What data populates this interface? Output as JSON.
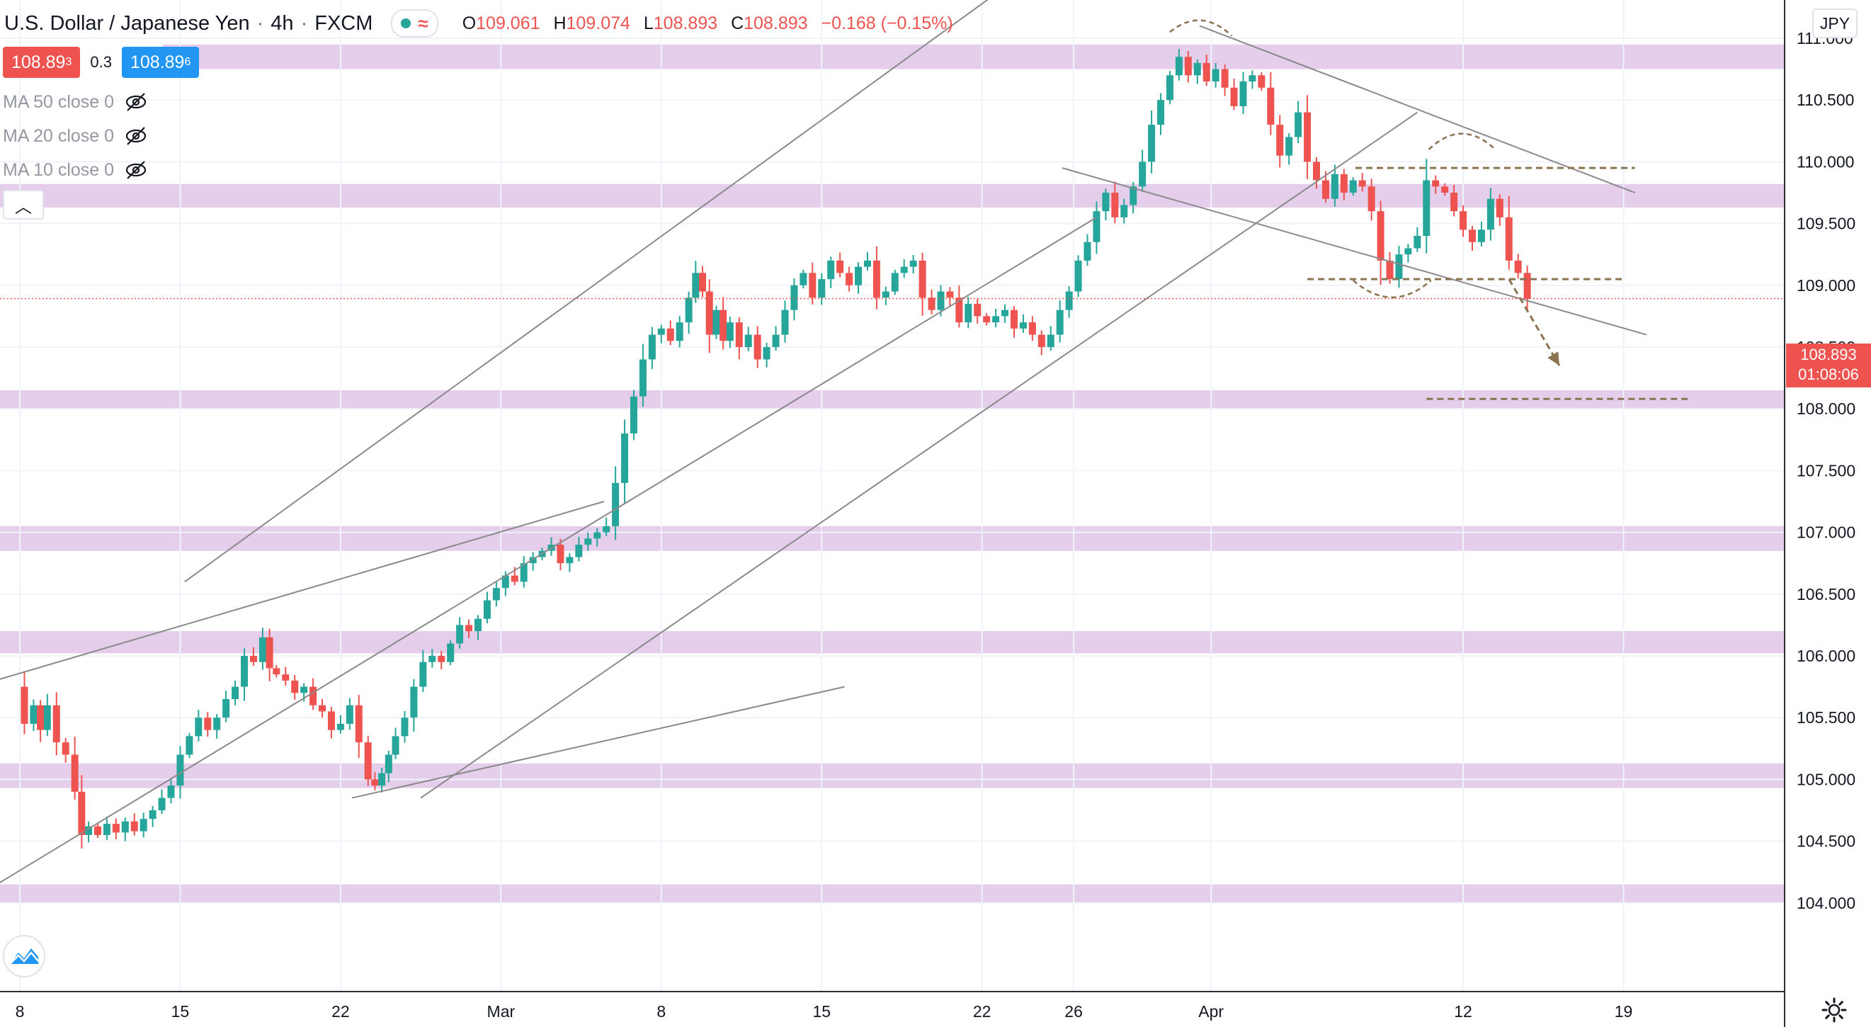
{
  "header": {
    "symbol": "U.S. Dollar / Japanese Yen",
    "interval": "4h",
    "exchange": "FXCM",
    "ohlc": {
      "o_label": "O",
      "o": "109.061",
      "h_label": "H",
      "h": "109.074",
      "l_label": "L",
      "l": "108.893",
      "c_label": "C",
      "c": "108.893",
      "change": "−0.168 (−0.15%)"
    }
  },
  "quote": {
    "sell_main": "108.89",
    "sell_sup": "3",
    "spread": "0.3",
    "buy_main": "108.89",
    "buy_sup": "6"
  },
  "indicators": [
    {
      "label": "MA 50 close 0",
      "icon": "eye-off-icon"
    },
    {
      "label": "MA 20 close 0",
      "icon": "eye-off-icon"
    },
    {
      "label": "MA 10 close 0",
      "icon": "eye-off-icon"
    }
  ],
  "price_scale": {
    "unit": "JPY",
    "current_price": "108.893",
    "countdown": "01:08:06"
  },
  "colors": {
    "up": "#26a69a",
    "down": "#ef5350",
    "zone": "#e1c4e9",
    "trendline": "#8a8a8a",
    "annotation": "#8a7452"
  },
  "chart_data": {
    "type": "candlestick",
    "title": "U.S. Dollar / Japanese Yen · 4h · FXCM",
    "ylim": [
      103.85,
      111.4
    ],
    "y_ticks": [
      "104.000",
      "104.500",
      "105.000",
      "105.500",
      "106.000",
      "106.500",
      "107.000",
      "107.500",
      "108.000",
      "108.500",
      "109.000",
      "109.500",
      "110.000",
      "110.500",
      "111.000"
    ],
    "x_ticks": [
      {
        "label": "8",
        "day": 0
      },
      {
        "label": "15",
        "day": 7
      },
      {
        "label": "22",
        "day": 14
      },
      {
        "label": "Mar",
        "day": 21
      },
      {
        "label": "8",
        "day": 28
      },
      {
        "label": "15",
        "day": 35
      },
      {
        "label": "22",
        "day": 42
      },
      {
        "label": "26",
        "day": 46
      },
      {
        "label": "Apr",
        "day": 52
      },
      {
        "label": "12",
        "day": 63
      },
      {
        "label": "19",
        "day": 70
      }
    ],
    "grid": true,
    "support_resistance_zones": [
      [
        110.75,
        110.95
      ],
      [
        109.63,
        109.82
      ],
      [
        108.0,
        108.15
      ],
      [
        106.85,
        107.05
      ],
      [
        106.02,
        106.2
      ],
      [
        104.93,
        105.13
      ],
      [
        104.0,
        104.15
      ]
    ],
    "price_path": [
      [
        -0.1,
        105.75
      ],
      [
        0.2,
        105.45
      ],
      [
        0.6,
        105.6
      ],
      [
        0.9,
        105.4
      ],
      [
        1.2,
        105.6
      ],
      [
        1.6,
        105.3
      ],
      [
        2.0,
        105.2
      ],
      [
        2.4,
        104.9
      ],
      [
        2.7,
        104.55
      ],
      [
        3.0,
        104.62
      ],
      [
        3.4,
        104.55
      ],
      [
        3.8,
        104.64
      ],
      [
        4.2,
        104.57
      ],
      [
        4.6,
        104.66
      ],
      [
        5.0,
        104.58
      ],
      [
        5.4,
        104.68
      ],
      [
        5.8,
        104.75
      ],
      [
        6.2,
        104.85
      ],
      [
        6.6,
        104.95
      ],
      [
        7.0,
        105.2
      ],
      [
        7.4,
        105.35
      ],
      [
        7.8,
        105.5
      ],
      [
        8.2,
        105.4
      ],
      [
        8.6,
        105.5
      ],
      [
        9.0,
        105.65
      ],
      [
        9.4,
        105.75
      ],
      [
        9.8,
        106.0
      ],
      [
        10.2,
        105.95
      ],
      [
        10.6,
        106.15
      ],
      [
        10.9,
        105.9
      ],
      [
        11.2,
        105.85
      ],
      [
        11.6,
        105.8
      ],
      [
        12.0,
        105.7
      ],
      [
        12.4,
        105.75
      ],
      [
        12.8,
        105.6
      ],
      [
        13.2,
        105.55
      ],
      [
        13.6,
        105.4
      ],
      [
        14.0,
        105.45
      ],
      [
        14.4,
        105.6
      ],
      [
        14.8,
        105.3
      ],
      [
        15.2,
        105.0
      ],
      [
        15.5,
        104.95
      ],
      [
        15.8,
        105.05
      ],
      [
        16.1,
        105.2
      ],
      [
        16.4,
        105.35
      ],
      [
        16.8,
        105.5
      ],
      [
        17.2,
        105.75
      ],
      [
        17.6,
        105.95
      ],
      [
        18.0,
        106.0
      ],
      [
        18.4,
        105.95
      ],
      [
        18.8,
        106.1
      ],
      [
        19.2,
        106.25
      ],
      [
        19.6,
        106.2
      ],
      [
        20.0,
        106.3
      ],
      [
        20.4,
        106.45
      ],
      [
        20.8,
        106.55
      ],
      [
        21.2,
        106.65
      ],
      [
        21.6,
        106.6
      ],
      [
        22.0,
        106.75
      ],
      [
        22.4,
        106.8
      ],
      [
        22.8,
        106.85
      ],
      [
        23.2,
        106.9
      ],
      [
        23.6,
        106.75
      ],
      [
        24.0,
        106.8
      ],
      [
        24.4,
        106.9
      ],
      [
        24.8,
        106.95
      ],
      [
        25.2,
        107.0
      ],
      [
        25.6,
        107.05
      ],
      [
        26.0,
        107.4
      ],
      [
        26.4,
        107.8
      ],
      [
        26.8,
        108.1
      ],
      [
        27.2,
        108.4
      ],
      [
        27.6,
        108.6
      ],
      [
        28.0,
        108.65
      ],
      [
        28.4,
        108.55
      ],
      [
        28.8,
        108.7
      ],
      [
        29.2,
        108.9
      ],
      [
        29.5,
        109.1
      ],
      [
        29.8,
        108.95
      ],
      [
        30.1,
        108.6
      ],
      [
        30.4,
        108.8
      ],
      [
        30.7,
        108.55
      ],
      [
        31.0,
        108.7
      ],
      [
        31.4,
        108.5
      ],
      [
        31.8,
        108.6
      ],
      [
        32.2,
        108.4
      ],
      [
        32.6,
        108.5
      ],
      [
        33.0,
        108.6
      ],
      [
        33.4,
        108.8
      ],
      [
        33.8,
        109.0
      ],
      [
        34.2,
        109.1
      ],
      [
        34.6,
        108.9
      ],
      [
        35.0,
        109.05
      ],
      [
        35.4,
        109.2
      ],
      [
        35.8,
        109.1
      ],
      [
        36.2,
        109.0
      ],
      [
        36.6,
        109.15
      ],
      [
        37.0,
        109.2
      ],
      [
        37.4,
        108.9
      ],
      [
        37.8,
        108.95
      ],
      [
        38.2,
        109.1
      ],
      [
        38.6,
        109.15
      ],
      [
        39.0,
        109.2
      ],
      [
        39.4,
        108.9
      ],
      [
        39.8,
        108.8
      ],
      [
        40.2,
        108.95
      ],
      [
        40.6,
        108.9
      ],
      [
        41.0,
        108.7
      ],
      [
        41.4,
        108.85
      ],
      [
        41.8,
        108.75
      ],
      [
        42.2,
        108.7
      ],
      [
        42.6,
        108.75
      ],
      [
        43.0,
        108.8
      ],
      [
        43.4,
        108.65
      ],
      [
        43.8,
        108.7
      ],
      [
        44.2,
        108.6
      ],
      [
        44.6,
        108.5
      ],
      [
        45.0,
        108.6
      ],
      [
        45.4,
        108.8
      ],
      [
        45.8,
        108.95
      ],
      [
        46.2,
        109.2
      ],
      [
        46.6,
        109.35
      ],
      [
        47.0,
        109.6
      ],
      [
        47.4,
        109.75
      ],
      [
        47.8,
        109.55
      ],
      [
        48.2,
        109.65
      ],
      [
        48.6,
        109.8
      ],
      [
        49.0,
        110.0
      ],
      [
        49.4,
        110.3
      ],
      [
        49.8,
        110.5
      ],
      [
        50.2,
        110.7
      ],
      [
        50.6,
        110.85
      ],
      [
        51.0,
        110.7
      ],
      [
        51.4,
        110.8
      ],
      [
        51.8,
        110.65
      ],
      [
        52.2,
        110.75
      ],
      [
        52.6,
        110.6
      ],
      [
        53.0,
        110.45
      ],
      [
        53.4,
        110.65
      ],
      [
        53.8,
        110.7
      ],
      [
        54.2,
        110.6
      ],
      [
        54.6,
        110.3
      ],
      [
        55.0,
        110.05
      ],
      [
        55.4,
        110.2
      ],
      [
        55.8,
        110.4
      ],
      [
        56.2,
        110.0
      ],
      [
        56.6,
        109.85
      ],
      [
        57.0,
        109.7
      ],
      [
        57.4,
        109.9
      ],
      [
        57.8,
        109.75
      ],
      [
        58.2,
        109.85
      ],
      [
        58.6,
        109.8
      ],
      [
        59.0,
        109.6
      ],
      [
        59.4,
        109.2
      ],
      [
        59.8,
        109.05
      ],
      [
        60.2,
        109.25
      ],
      [
        60.6,
        109.3
      ],
      [
        61.0,
        109.4
      ],
      [
        61.4,
        109.85
      ],
      [
        61.8,
        109.8
      ],
      [
        62.2,
        109.75
      ],
      [
        62.6,
        109.6
      ],
      [
        63.0,
        109.45
      ],
      [
        63.4,
        109.35
      ],
      [
        63.8,
        109.45
      ],
      [
        64.2,
        109.7
      ],
      [
        64.6,
        109.55
      ],
      [
        65.0,
        109.2
      ],
      [
        65.4,
        109.1
      ],
      [
        65.8,
        108.89
      ]
    ],
    "trendlines": [
      [
        [
          7.2,
          106.6
        ],
        [
          45.5,
          111.75
        ]
      ],
      [
        [
          -2,
          105.75
        ],
        [
          25.5,
          107.25
        ]
      ],
      [
        [
          -1,
          104.15
        ],
        [
          47.0,
          109.55
        ]
      ],
      [
        [
          14.5,
          104.85
        ],
        [
          36.0,
          105.75
        ]
      ],
      [
        [
          17.5,
          104.85
        ],
        [
          61.0,
          110.4
        ]
      ],
      [
        [
          45.5,
          109.95
        ],
        [
          71.0,
          108.6
        ]
      ],
      [
        [
          51.5,
          111.1
        ],
        [
          70.5,
          109.75
        ]
      ]
    ],
    "dashed_levels": [
      {
        "price": 109.95,
        "from": 58.3,
        "to": 70.5
      },
      {
        "price": 109.05,
        "from": 56.2,
        "to": 70.0
      },
      {
        "price": 108.08,
        "from": 61.4,
        "to": 72.8
      }
    ],
    "projection_arrow": [
      [
        65.0,
        109.05
      ],
      [
        67.2,
        108.35
      ]
    ],
    "arcs": [
      {
        "from": [
          50.2,
          111.05
        ],
        "to": [
          52.9,
          111.02
        ],
        "peak": 111.14
      },
      {
        "from": [
          61.5,
          110.1
        ],
        "to": [
          64.4,
          110.1
        ],
        "peak": 110.24
      },
      {
        "from": [
          58.2,
          109.04
        ],
        "to": [
          61.6,
          109.04
        ],
        "trough": 108.88
      }
    ],
    "current_price": 108.893
  }
}
